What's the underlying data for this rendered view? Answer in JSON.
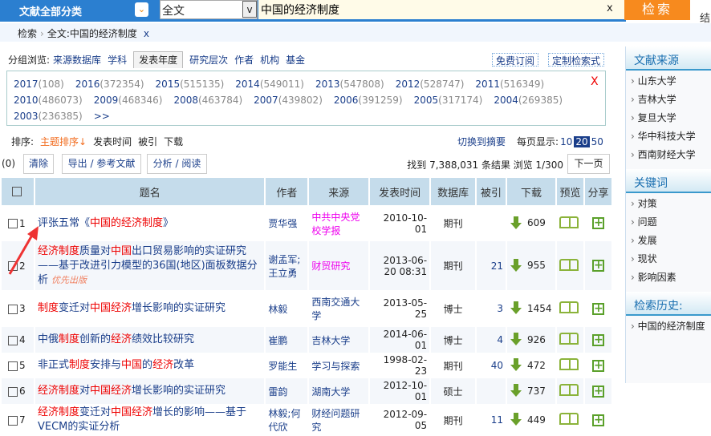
{
  "header": {
    "category": "文献全部分类",
    "field": "全文",
    "query": "中国的经济制度",
    "clear": "x",
    "search": "检索",
    "cut_text": "结"
  },
  "breadcrumb": {
    "root": "检索",
    "sep": "›",
    "current": "全文:中国的经济制度",
    "close": "x"
  },
  "group": {
    "label": "分组浏览:",
    "tabs": [
      "来源数据库",
      "学科",
      "发表年度",
      "研究层次",
      "作者",
      "机构",
      "基金"
    ],
    "active": "发表年度",
    "subscribe": "免费订阅",
    "custom": "定制检索式",
    "years": [
      [
        "2017",
        "(108)"
      ],
      [
        "2016",
        "(372354)"
      ],
      [
        "2015",
        "(515135)"
      ],
      [
        "2014",
        "(549011)"
      ],
      [
        "2013",
        "(547808)"
      ],
      [
        "2012",
        "(528747)"
      ],
      [
        "2011",
        "(516349)"
      ],
      [
        "2010",
        "(486073)"
      ],
      [
        "2009",
        "(468346)"
      ],
      [
        "2008",
        "(463784)"
      ],
      [
        "2007",
        "(439802)"
      ],
      [
        "2006",
        "(391259)"
      ],
      [
        "2005",
        "(317174)"
      ],
      [
        "2004",
        "(269385)"
      ],
      [
        "2003",
        "(236385)"
      ]
    ],
    "more": ">>",
    "close": "X"
  },
  "sort": {
    "label": "排序:",
    "options": [
      "主题排序↓",
      "发表时间",
      "被引",
      "下载"
    ],
    "switch": "切换到摘要",
    "perpage_label": "每页显示:",
    "perpage": [
      "10",
      "20",
      "50"
    ],
    "perpage_selected": "20"
  },
  "actions": {
    "count": "(0)",
    "clear": "清除",
    "export": "导出 / 参考文献",
    "analyze": "分析 / 阅读",
    "found": "找到 7,388,031 条结果",
    "browse": "浏览 1/300",
    "next": "下一页"
  },
  "table": {
    "headers": [
      "题名",
      "作者",
      "来源",
      "发表时间",
      "数据库",
      "被引",
      "下载",
      "预览",
      "分享"
    ],
    "rows": [
      {
        "n": "1",
        "title": [
          [
            "评张五常《",
            0
          ],
          [
            "中国的经济制度",
            1
          ],
          [
            "》",
            0
          ]
        ],
        "tag": "",
        "author": "贾华强",
        "source": "中共中央党校学报",
        "source_magenta": true,
        "date": "2010-10-01",
        "db": "期刊",
        "cite": "",
        "dl": "609"
      },
      {
        "n": "2",
        "title": [
          [
            "经济制度",
            1
          ],
          [
            "质量对",
            0
          ],
          [
            "中国",
            1
          ],
          [
            "出口贸易影响的实证研究——基于改进引力模型的36国(地区)面板数据分析",
            0
          ]
        ],
        "tag": "优先出版",
        "author": "谢孟军;王立勇",
        "source": "财贸研究",
        "source_magenta": true,
        "date": "2013-06-20 08:31",
        "db": "期刊",
        "cite": "21",
        "dl": "955"
      },
      {
        "n": "3",
        "title": [
          [
            "制度",
            1
          ],
          [
            "变迁对",
            0
          ],
          [
            "中国经济",
            1
          ],
          [
            "增长影响的实证研究",
            0
          ]
        ],
        "tag": "",
        "author": "林毅",
        "source": "西南交通大学",
        "source_magenta": false,
        "date": "2013-05-25",
        "db": "博士",
        "cite": "3",
        "dl": "1454"
      },
      {
        "n": "4",
        "title": [
          [
            "中俄",
            0
          ],
          [
            "制度",
            1
          ],
          [
            "创新的",
            0
          ],
          [
            "经济",
            1
          ],
          [
            "绩效比较研究",
            0
          ]
        ],
        "tag": "",
        "author": "崔鹏",
        "source": "吉林大学",
        "source_magenta": false,
        "date": "2014-06-01",
        "db": "博士",
        "cite": "4",
        "dl": "926"
      },
      {
        "n": "5",
        "title": [
          [
            "非正式",
            0
          ],
          [
            "制度",
            1
          ],
          [
            "安排与",
            0
          ],
          [
            "中国",
            1
          ],
          [
            "的",
            0
          ],
          [
            "经济",
            1
          ],
          [
            "改革",
            0
          ]
        ],
        "tag": "",
        "author": "罗能生",
        "source": "学习与探索",
        "source_magenta": false,
        "date": "1998-02-23",
        "db": "期刊",
        "cite": "40",
        "dl": "472"
      },
      {
        "n": "6",
        "title": [
          [
            "经济制度",
            1
          ],
          [
            "对",
            0
          ],
          [
            "中国经济",
            1
          ],
          [
            "增长影响的实证研究",
            0
          ]
        ],
        "tag": "",
        "author": "雷韵",
        "source": "湖南大学",
        "source_magenta": false,
        "date": "2012-10-01",
        "db": "硕士",
        "cite": "",
        "dl": "737"
      },
      {
        "n": "7",
        "title": [
          [
            "经济制度",
            1
          ],
          [
            "变迁对",
            0
          ],
          [
            "中国经济",
            1
          ],
          [
            "增长的影响——基于VECM的实证分析",
            0
          ]
        ],
        "tag": "",
        "author": "林毅;何代欣",
        "source": "财经问题研究",
        "source_magenta": false,
        "date": "2012-09-05",
        "db": "期刊",
        "cite": "11",
        "dl": "449"
      }
    ]
  },
  "sidebar": [
    {
      "title": "文献来源",
      "items": [
        "山东大学",
        "吉林大学",
        "复旦大学",
        "华中科技大学",
        "西南财经大学"
      ]
    },
    {
      "title": "关键词",
      "items": [
        "对策",
        "问题",
        "发展",
        "现状",
        "影响因素"
      ]
    },
    {
      "title": "检索历史:",
      "items": [
        "中国的经济制度"
      ]
    }
  ],
  "colors": {
    "header_blue": "#2b7fd0",
    "search_orange": "#f78a1e",
    "highlight": "#e00000",
    "link": "#1a3e8a"
  }
}
